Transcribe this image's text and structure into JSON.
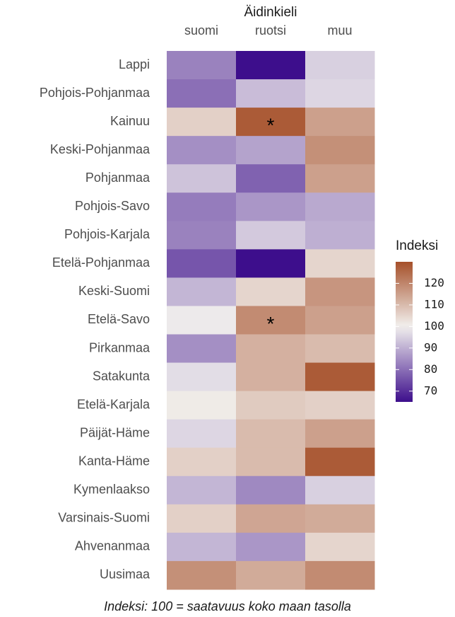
{
  "chart_data": {
    "type": "heatmap",
    "x_title": "Äidinkieli",
    "categories": [
      "Lappi",
      "Pohjois-Pohjanmaa",
      "Kainuu",
      "Keski-Pohjanmaa",
      "Pohjanmaa",
      "Pohjois-Savo",
      "Pohjois-Karjala",
      "Etelä-Pohjanmaa",
      "Keski-Suomi",
      "Etelä-Savo",
      "Pirkanmaa",
      "Satakunta",
      "Etelä-Karjala",
      "Päijät-Häme",
      "Kanta-Häme",
      "Kymenlaakso",
      "Varsinais-Suomi",
      "Ahvenanmaa",
      "Uusimaa"
    ],
    "series": [
      {
        "name": "suomi",
        "values": [
          83,
          80,
          106,
          85,
          93,
          82,
          83,
          76,
          91,
          99,
          85,
          97,
          101,
          96,
          106,
          91,
          106,
          91,
          118
        ]
      },
      {
        "name": "ruotsi",
        "values": [
          65,
          92,
          128,
          88,
          78,
          86,
          94,
          65,
          105,
          119,
          112,
          112,
          107,
          110,
          110,
          84,
          114,
          86,
          113
        ],
        "value_labels": [
          null,
          null,
          "*",
          null,
          null,
          null,
          null,
          null,
          null,
          "*",
          null,
          null,
          null,
          null,
          null,
          null,
          null,
          null,
          null
        ]
      },
      {
        "name": "muu",
        "values": [
          95,
          96,
          115,
          118,
          115,
          89,
          90,
          105,
          117,
          115,
          110,
          128,
          106,
          115,
          128,
          95,
          113,
          105,
          119
        ]
      }
    ],
    "colorbar": {
      "title": "Indeksi",
      "lim": [
        65,
        130
      ],
      "ticks": [
        70,
        80,
        90,
        100,
        110,
        120
      ],
      "midpoint": 100,
      "colors": [
        "#3d0e8c",
        "#f2f0ee",
        "#a6502a"
      ]
    },
    "caption": "Indeksi: 100 = saatavuus koko maan tasolla"
  }
}
